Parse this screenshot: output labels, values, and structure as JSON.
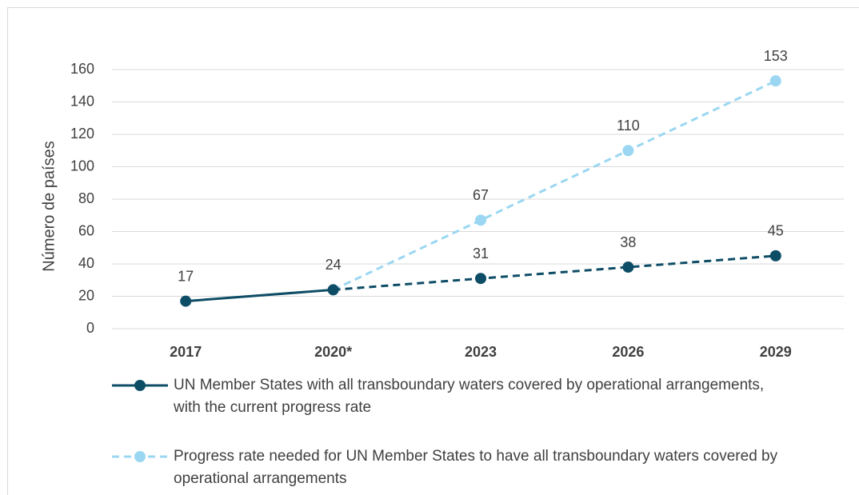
{
  "chart_data": {
    "type": "line",
    "y_label": "Número de países",
    "categories": [
      "2017",
      "2020*",
      "2023",
      "2026",
      "2029"
    ],
    "series": [
      {
        "name": "UN Member States with all transboundary waters covered by operational arrangements, with the current progress rate",
        "color": "#0e4d66",
        "values": [
          17,
          24,
          31,
          38,
          45
        ],
        "dashed_from": "2020*"
      },
      {
        "name": "Progress rate needed for UN Member States to have all transboundary waters covered by operational arrangements",
        "color": "#9bd7f2",
        "values": [
          null,
          24,
          67,
          110,
          153
        ],
        "dashed": true
      }
    ],
    "ylim": [
      0,
      160
    ],
    "yticks": [
      0,
      20,
      40,
      60,
      80,
      100,
      120,
      140,
      160
    ],
    "grid": true
  }
}
